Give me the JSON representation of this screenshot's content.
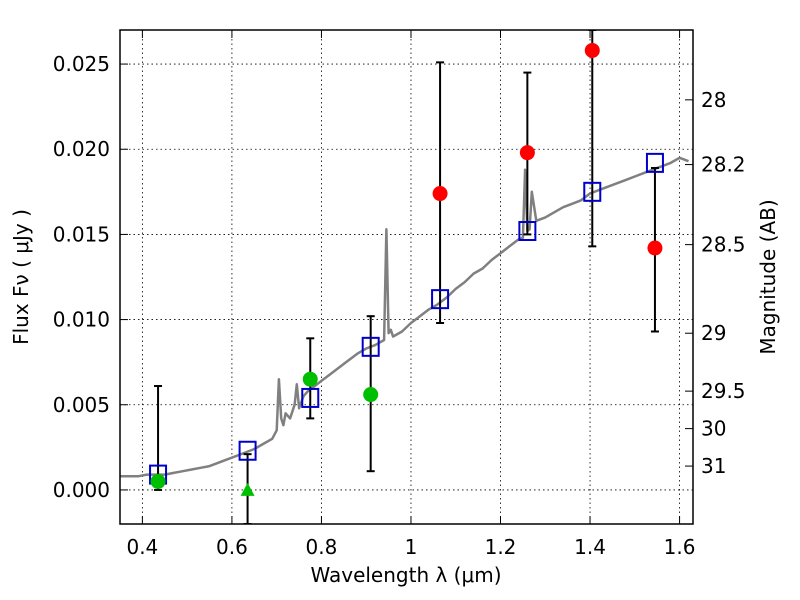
{
  "chart_data": {
    "type": "scatter",
    "xlabel": "Wavelength  λ (μm)",
    "ylabel": "Flux  Fν  ( μJy )",
    "ylabel_right": "Magnitude (AB)",
    "xlim": [
      0.35,
      1.63
    ],
    "ylim": [
      -0.002,
      0.027
    ],
    "grid": true,
    "x_ticks": [
      0.4,
      0.6,
      0.8,
      1.0,
      1.2,
      1.4,
      1.6
    ],
    "x_tick_labels": [
      "0.4",
      "0.6",
      "0.8",
      "1",
      "1.2",
      "1.4",
      "1.6"
    ],
    "y_ticks": [
      0.0,
      0.005,
      0.01,
      0.015,
      0.02,
      0.025
    ],
    "y_tick_labels": [
      "0.000",
      "0.005",
      "0.010",
      "0.015",
      "0.020",
      "0.025"
    ],
    "right_ticks": [
      {
        "label": "28",
        "flux": 0.0229
      },
      {
        "label": "28.2",
        "flux": 0.0191
      },
      {
        "label": "28.5",
        "flux": 0.0144
      },
      {
        "label": "29",
        "flux": 0.0092
      },
      {
        "label": "29.5",
        "flux": 0.0058
      },
      {
        "label": "30",
        "flux": 0.0036
      },
      {
        "label": "31",
        "flux": 0.0014
      }
    ],
    "colors": {
      "model": "#808080",
      "red": "#ff0000",
      "green": "#00bf00",
      "box": "#0000cc",
      "errorbar": "#000000",
      "grid": "#000000"
    },
    "series": [
      {
        "kind": "model_spectrum",
        "x": [
          0.35,
          0.37,
          0.39,
          0.41,
          0.43,
          0.45,
          0.47,
          0.49,
          0.51,
          0.53,
          0.55,
          0.57,
          0.59,
          0.61,
          0.63,
          0.65,
          0.67,
          0.69,
          0.7,
          0.705,
          0.71,
          0.715,
          0.72,
          0.73,
          0.74,
          0.745,
          0.75,
          0.76,
          0.77,
          0.78,
          0.8,
          0.82,
          0.84,
          0.86,
          0.88,
          0.9,
          0.92,
          0.94,
          0.945,
          0.95,
          0.955,
          0.96,
          0.98,
          1.0,
          1.02,
          1.04,
          1.06,
          1.08,
          1.1,
          1.12,
          1.14,
          1.16,
          1.18,
          1.2,
          1.22,
          1.24,
          1.25,
          1.255,
          1.26,
          1.265,
          1.27,
          1.28,
          1.3,
          1.32,
          1.34,
          1.36,
          1.38,
          1.4,
          1.42,
          1.44,
          1.46,
          1.48,
          1.5,
          1.52,
          1.54,
          1.56,
          1.58,
          1.6,
          1.62
        ],
        "y": [
          0.0008,
          0.0008,
          0.0008,
          0.0009,
          0.0009,
          0.0009,
          0.001,
          0.0011,
          0.0012,
          0.0013,
          0.0014,
          0.0016,
          0.0018,
          0.002,
          0.0022,
          0.0024,
          0.0027,
          0.003,
          0.0035,
          0.0065,
          0.0042,
          0.0038,
          0.0045,
          0.0042,
          0.005,
          0.0062,
          0.0048,
          0.0055,
          0.0058,
          0.006,
          0.0064,
          0.0068,
          0.0072,
          0.0076,
          0.008,
          0.0083,
          0.0085,
          0.0088,
          0.0153,
          0.0092,
          0.0094,
          0.009,
          0.0093,
          0.0098,
          0.0102,
          0.0106,
          0.0109,
          0.0113,
          0.0118,
          0.0122,
          0.0127,
          0.013,
          0.0135,
          0.0139,
          0.0143,
          0.0147,
          0.0148,
          0.0188,
          0.0152,
          0.0153,
          0.0175,
          0.0158,
          0.016,
          0.0163,
          0.0166,
          0.0168,
          0.017,
          0.0174,
          0.0176,
          0.0178,
          0.018,
          0.0182,
          0.0184,
          0.0186,
          0.0188,
          0.019,
          0.0192,
          0.0195,
          0.0193
        ]
      },
      {
        "kind": "model_points_box",
        "x": [
          0.435,
          0.635,
          0.775,
          0.91,
          1.065,
          1.26,
          1.405,
          1.545
        ],
        "y": [
          0.0009,
          0.0023,
          0.0054,
          0.0084,
          0.0112,
          0.0152,
          0.0175,
          0.0192
        ]
      },
      {
        "kind": "observed_green",
        "x": [
          0.435,
          0.775,
          0.91
        ],
        "y": [
          0.0005,
          0.0065,
          0.0056
        ],
        "err_low": [
          0.0,
          0.0042,
          0.0011
        ],
        "err_high": [
          0.0061,
          0.0089,
          0.0102
        ]
      },
      {
        "kind": "observed_green_triangle",
        "x": [
          0.635
        ],
        "y": [
          0.0
        ],
        "err_low": [
          -0.002
        ],
        "err_high": [
          0.0021
        ]
      },
      {
        "kind": "observed_red",
        "x": [
          1.065,
          1.26,
          1.405,
          1.545
        ],
        "y": [
          0.0174,
          0.0198,
          0.0258,
          0.0142
        ],
        "err_low": [
          0.0098,
          0.015,
          0.0143,
          0.0093
        ],
        "err_high": [
          0.0251,
          0.0245,
          0.027,
          0.0189
        ]
      }
    ]
  }
}
